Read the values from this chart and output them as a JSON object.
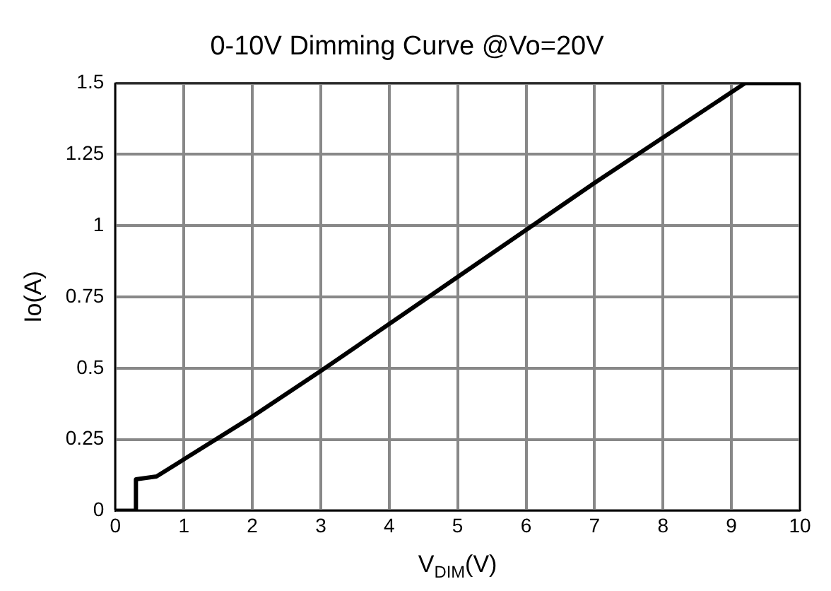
{
  "chart_data": {
    "type": "line",
    "title": "0-10V Dimming Curve @Vo=20V",
    "xlabel": "V$_{DIM}$(V)",
    "ylabel": "Io(A)",
    "x": [
      0,
      0.3,
      0.3,
      0.6,
      1,
      2,
      3,
      5,
      7,
      9.2,
      10
    ],
    "series": [
      {
        "color": "#000000",
        "values": [
          0,
          0,
          0.11,
          0.12,
          0.18,
          0.33,
          0.49,
          0.82,
          1.15,
          1.5,
          1.5
        ]
      }
    ],
    "xlim": [
      0,
      10
    ],
    "xticks": [
      0,
      1,
      2,
      3,
      4,
      5,
      6,
      7,
      8,
      9,
      10
    ],
    "ylim": [
      0,
      1.5
    ],
    "yticks": [
      0,
      0.25,
      0.5,
      0.75,
      1,
      1.25,
      1.5
    ],
    "grid": true,
    "legend": false,
    "marker": "none",
    "line_style": "solid"
  }
}
